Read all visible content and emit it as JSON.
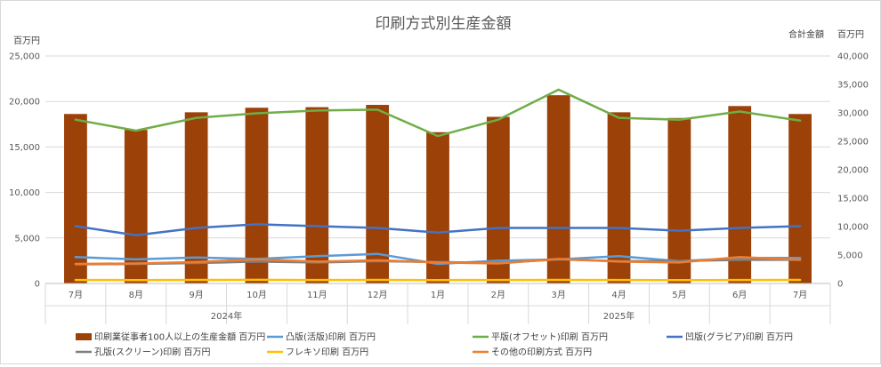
{
  "chart_data": {
    "type": "bar+line",
    "title": "印刷方式別生産金額",
    "y_left_unit": "百万円",
    "y_right_label": "合計金額",
    "y_right_unit": "百万円",
    "y_left_range": [
      0,
      25000
    ],
    "y_right_range": [
      0,
      40000
    ],
    "y_left_ticks": [
      "0",
      "5,000",
      "10,000",
      "15,000",
      "20,000",
      "25,000"
    ],
    "y_right_ticks": [
      "0",
      "5,000",
      "10,000",
      "15,000",
      "20,000",
      "25,000",
      "30,000",
      "35,000",
      "40,000"
    ],
    "categories": [
      "7月",
      "8月",
      "9月",
      "10月",
      "11月",
      "12月",
      "1月",
      "2月",
      "3月",
      "4月",
      "5月",
      "6月",
      "7月"
    ],
    "groups": [
      {
        "label": "2024年",
        "start": 0,
        "end": 5
      },
      {
        "label": "2025年",
        "start": 6,
        "end": 12
      }
    ],
    "bar_series": {
      "name": "印刷業従事者100人以上の生産金額 百万円",
      "axis": "right",
      "color": "#9c4108",
      "values": [
        29800,
        27000,
        30100,
        30900,
        31000,
        31400,
        26600,
        29300,
        33100,
        30100,
        29100,
        31200,
        29800
      ]
    },
    "line_series": [
      {
        "name": "凸版(活版)印刷 百万円",
        "axis": "left",
        "color": "#5b9bd5",
        "values": [
          2900,
          2650,
          2850,
          2700,
          3000,
          3250,
          2150,
          2500,
          2650,
          3000,
          2450,
          2800,
          2800
        ]
      },
      {
        "name": "平版(オフセット)印刷 百万円",
        "axis": "left",
        "color": "#70ad47",
        "values": [
          18000,
          16800,
          18200,
          18700,
          19000,
          19100,
          16200,
          18000,
          21300,
          18200,
          18000,
          18900,
          17900
        ]
      },
      {
        "name": "凹版(グラビア)印刷 百万円",
        "axis": "left",
        "color": "#4472c4",
        "values": [
          6300,
          5300,
          6100,
          6500,
          6300,
          6100,
          5600,
          6100,
          6100,
          6100,
          5800,
          6100,
          6300
        ]
      },
      {
        "name": "孔版(スクリーン)印刷 百万円",
        "axis": "left",
        "color": "#7f7f7f",
        "values": [
          2100,
          2150,
          2250,
          2400,
          2300,
          2450,
          2350,
          2250,
          2650,
          2450,
          2450,
          2600,
          2600
        ]
      },
      {
        "name": "フレキソ印刷 百万円",
        "axis": "left",
        "color": "#ffc000",
        "values": [
          380,
          370,
          390,
          400,
          380,
          390,
          370,
          380,
          390,
          380,
          370,
          380,
          390
        ]
      },
      {
        "name": "その他の印刷方式 百万円",
        "axis": "left",
        "color": "#ed7d31",
        "values": [
          2150,
          2200,
          2350,
          2650,
          2400,
          2550,
          2300,
          2200,
          2700,
          2400,
          2300,
          2900,
          2600
        ]
      }
    ],
    "legend_position": "bottom",
    "grid": true
  }
}
